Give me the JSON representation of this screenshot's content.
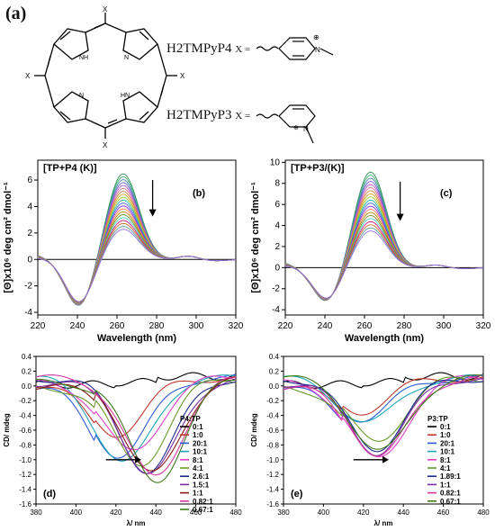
{
  "labels": {
    "a": "(a)",
    "b": "(b)",
    "c": "(c)",
    "d": "(d)",
    "e": "(e)"
  },
  "structure": {
    "x_marks": [
      "X",
      "X",
      "X",
      "X"
    ],
    "nh_top": "NH",
    "n_top": "N",
    "n_bottom": "N",
    "hn_bottom": "HN",
    "p4_name": "H2TMPyP4",
    "p3_name": "H2TMPyP3",
    "x_eq": "X =",
    "n_plus": "N",
    "plus": "⊕"
  },
  "chart_data": [
    {
      "id": "b",
      "type": "line",
      "title": "[TP+P4 (K)]",
      "xlabel": "Wavelength (nm)",
      "ylabel": "[Θ]x10⁶ deg cm² dmol⁻¹",
      "xlim": [
        220,
        320
      ],
      "ylim": [
        -4.2,
        7.5
      ],
      "xticks": [
        220,
        240,
        260,
        280,
        300,
        320
      ],
      "yticks": [
        -4,
        -2,
        0,
        2,
        4,
        6
      ],
      "peak_max": 6.5,
      "peak_min": 2.3,
      "trough": -3.6,
      "n_curves": 20,
      "arrow": "down"
    },
    {
      "id": "c",
      "type": "line",
      "title": "[TP+P3/(K)]",
      "xlabel": "Wavelength (nm)",
      "ylabel": "[Θ]x10⁶ deg cm² dmol⁻¹",
      "xlim": [
        220,
        320
      ],
      "ylim": [
        -4.5,
        10.2
      ],
      "xticks": [
        220,
        240,
        260,
        280,
        300,
        320
      ],
      "yticks": [
        -4,
        -2,
        0,
        2,
        4,
        6,
        8,
        10
      ],
      "peak_max": 9.1,
      "peak_min": 3.5,
      "trough": -3.3,
      "n_curves": 20,
      "arrow": "down"
    },
    {
      "id": "d",
      "type": "line",
      "xlabel": "λ/ nm",
      "ylabel": "CD/ mdeg",
      "xlim": [
        380,
        480
      ],
      "ylim": [
        -1.6,
        0.4
      ],
      "xticks": [
        380,
        400,
        420,
        440,
        460,
        480
      ],
      "yticks": [
        0.4,
        0.2,
        0.0,
        -0.2,
        -0.4,
        -0.6,
        -0.8,
        -1.0,
        -1.2,
        -1.4,
        -1.6
      ],
      "legend_title": "P4:TP",
      "series": [
        {
          "name": "0:1",
          "color": "#000000",
          "center": 0,
          "depth": 0
        },
        {
          "name": "1:0",
          "color": "#c0392b",
          "center": 420,
          "depth": 0.75
        },
        {
          "name": "20:1",
          "color": "#2a5bd7",
          "center": 422,
          "depth": 1.05
        },
        {
          "name": "10:1",
          "color": "#1fa5b8",
          "center": 424,
          "depth": 1.15
        },
        {
          "name": "8:1",
          "color": "#e040c8",
          "center": 428,
          "depth": 1.0
        },
        {
          "name": "4:1",
          "color": "#6a9a2a",
          "center": 432,
          "depth": 1.15
        },
        {
          "name": "2.6:1",
          "color": "#1b2a8a",
          "center": 436,
          "depth": 1.25
        },
        {
          "name": "1.5:1",
          "color": "#7b2fa0",
          "center": 437,
          "depth": 1.3
        },
        {
          "name": "1:1",
          "color": "#8b1a1a",
          "center": 438,
          "depth": 1.3
        },
        {
          "name": "0.82:1",
          "color": "#d63aa0",
          "center": 439,
          "depth": 1.33
        },
        {
          "name": "0.67:1",
          "color": "#3f7a1a",
          "center": 440,
          "depth": 1.38
        }
      ],
      "arrow": "right"
    },
    {
      "id": "e",
      "type": "line",
      "xlabel": "λ/ nm",
      "ylabel": "CD/ mdeg",
      "xlim": [
        380,
        480
      ],
      "ylim": [
        -1.6,
        0.4
      ],
      "xticks": [
        380,
        400,
        420,
        440,
        460,
        480
      ],
      "yticks": [
        0.4,
        0.2,
        0.0,
        -0.2,
        -0.4,
        -0.6,
        -0.8,
        -1.0,
        -1.2,
        -1.4,
        -1.6
      ],
      "legend_title": "P3:TP",
      "series": [
        {
          "name": "0:1",
          "color": "#000000",
          "center": 0,
          "depth": 0
        },
        {
          "name": "1:0",
          "color": "#c0392b",
          "center": 418,
          "depth": 0.45
        },
        {
          "name": "20:1",
          "color": "#2a5bd7",
          "center": 420,
          "depth": 0.55
        },
        {
          "name": "10:1",
          "color": "#1fa5b8",
          "center": 422,
          "depth": 0.6
        },
        {
          "name": "8:1",
          "color": "#e040c8",
          "center": 427,
          "depth": 1.1
        },
        {
          "name": "4:1",
          "color": "#6a9a2a",
          "center": 426,
          "depth": 0.85
        },
        {
          "name": "1.89:1",
          "color": "#1b2a8a",
          "center": 426,
          "depth": 0.95
        },
        {
          "name": "1:1",
          "color": "#7b2fa0",
          "center": 427,
          "depth": 1.0
        },
        {
          "name": "0.82:1",
          "color": "#d63aa0",
          "center": 428,
          "depth": 1.05
        },
        {
          "name": "0.67:1",
          "color": "#3f7a1a",
          "center": 428,
          "depth": 1.0
        }
      ],
      "arrow": "right"
    }
  ]
}
